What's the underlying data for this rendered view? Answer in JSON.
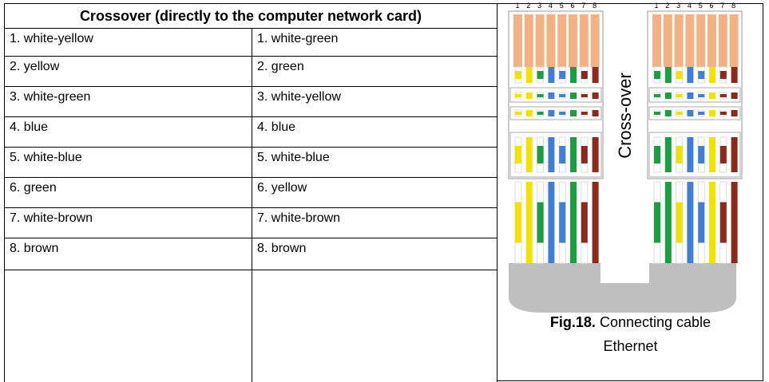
{
  "table": {
    "header": "Crossover (directly to the computer network card)",
    "rows": [
      [
        "1. white-yellow",
        "1. white-green"
      ],
      [
        "2. yellow",
        "2. green"
      ],
      [
        "3. white-green",
        "3. white-yellow"
      ],
      [
        "4. blue",
        "4. blue"
      ],
      [
        "5. white-blue",
        "5. white-blue"
      ],
      [
        "6. green",
        "6. yellow"
      ],
      [
        "7. white-brown",
        "7. white-brown"
      ],
      [
        "8. brown",
        "8. brown"
      ]
    ]
  },
  "figure": {
    "pin_labels": [
      "1",
      "2",
      "3",
      "4",
      "5",
      "6",
      "7",
      "8"
    ],
    "label": "Cross-over",
    "caption_number": "Fig.18.",
    "caption_text": "Connecting cable",
    "caption_text_2": "Ethernet"
  }
}
